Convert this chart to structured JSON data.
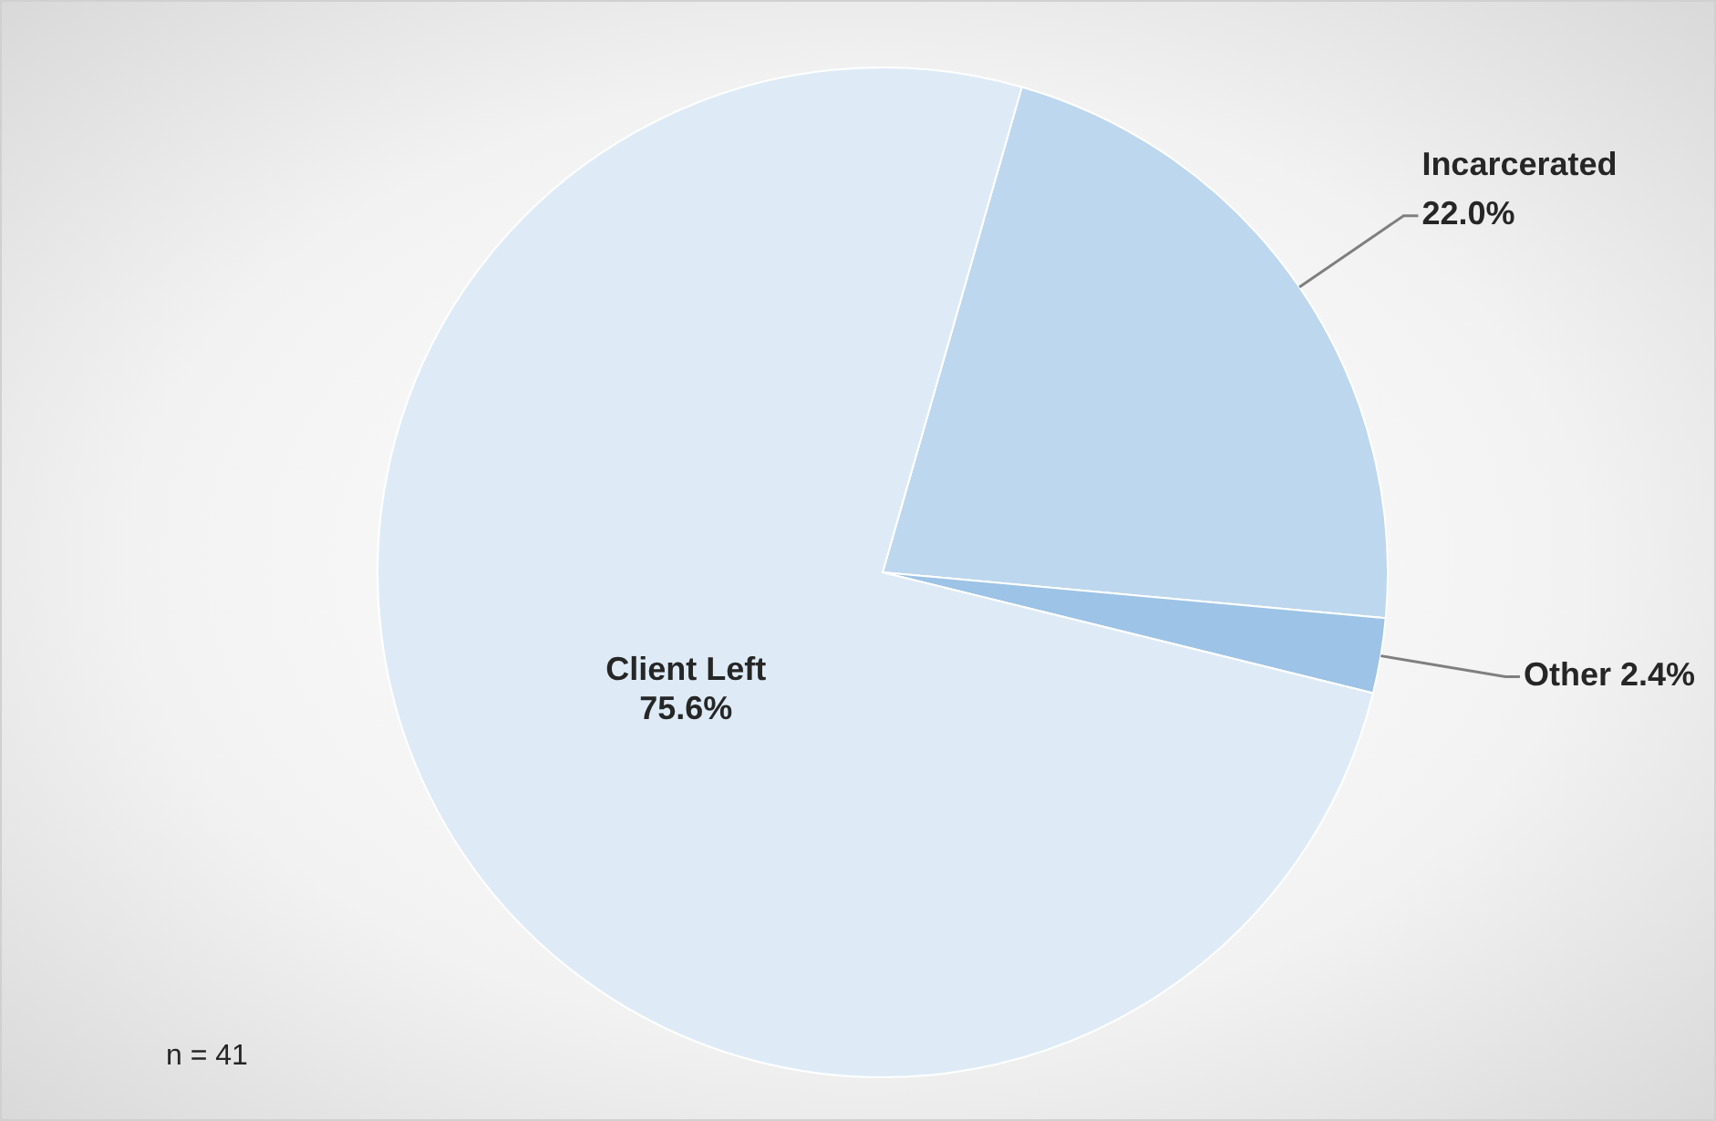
{
  "chart_data": {
    "type": "pie",
    "categories": [
      "Incarcerated",
      "Other",
      "Client Left"
    ],
    "values": [
      22.0,
      2.4,
      75.6
    ],
    "value_labels": [
      "22.0%",
      "2.4%",
      "75.6%"
    ],
    "colors": [
      "#bdd7ee",
      "#9dc3e6",
      "#deebf7"
    ],
    "annotations": [
      "n = 41"
    ],
    "legend": false
  }
}
